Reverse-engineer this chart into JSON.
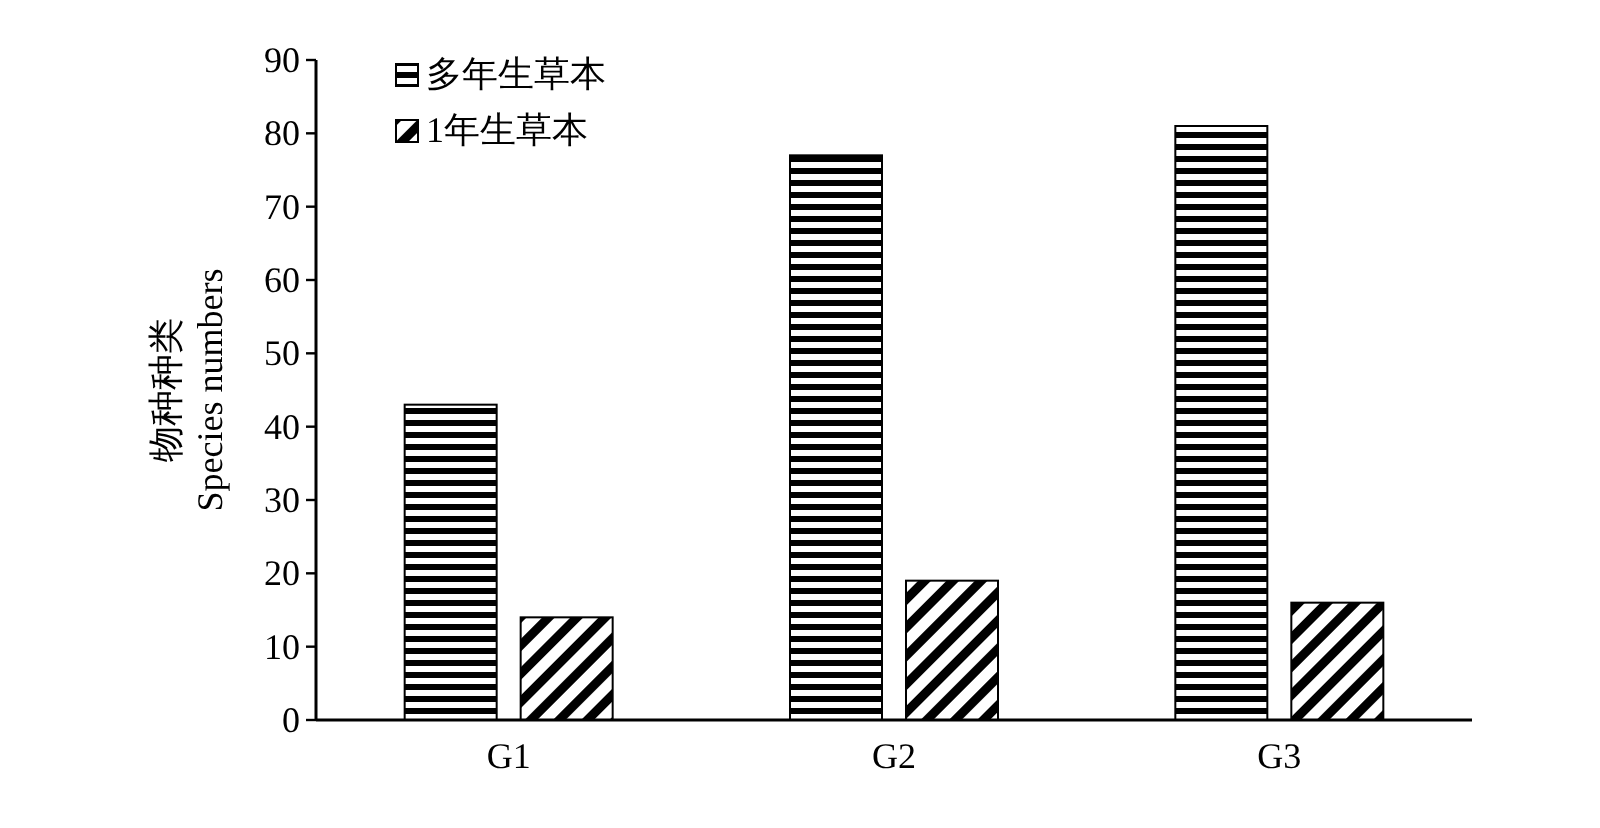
{
  "chart_data": {
    "type": "bar",
    "ylabel": "物种种类\nSpecies numbers",
    "categories": [
      "G1",
      "G2",
      "G3"
    ],
    "series": [
      {
        "name": "多年生草本",
        "color": "#000000",
        "values": [
          43,
          77,
          81
        ]
      },
      {
        "name": "1年生草本",
        "color": "#000000",
        "values": [
          14,
          19,
          16
        ]
      }
    ],
    "ylim": [
      0,
      90
    ],
    "yticks": [
      0,
      10,
      20,
      30,
      40,
      50,
      60,
      70,
      80,
      90
    ],
    "legend": "top left",
    "grid": false
  }
}
